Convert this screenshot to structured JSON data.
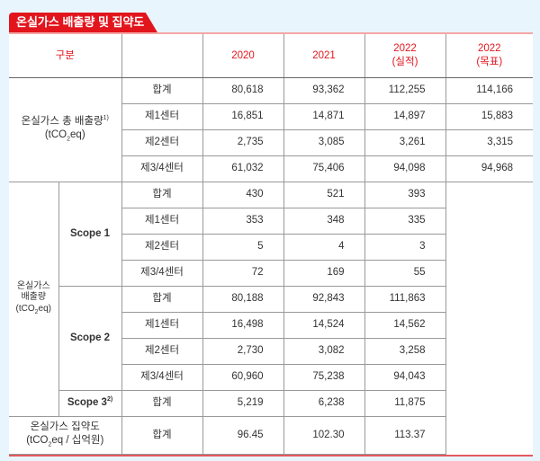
{
  "title": "온실가스 배출량 및 집약도",
  "headers": {
    "category": "구분",
    "y2020": "2020",
    "y2021": "2021",
    "y2022": "2022",
    "y2022_note": "(실적)",
    "y2022g": "2022",
    "y2022g_note": "(목표)"
  },
  "total": {
    "label": "온실가스 총 배출량",
    "sup": "1)",
    "unit_pre": "(tCO",
    "unit_sub": "2",
    "unit_post": "eq)",
    "rows": [
      {
        "sub": "합계",
        "v2020": "80,618",
        "v2021": "93,362",
        "v2022": "112,255",
        "goal": "114,166"
      },
      {
        "sub": "제1센터",
        "v2020": "16,851",
        "v2021": "14,871",
        "v2022": "14,897",
        "goal": "15,883"
      },
      {
        "sub": "제2센터",
        "v2020": "2,735",
        "v2021": "3,085",
        "v2022": "3,261",
        "goal": "3,315"
      },
      {
        "sub": "제3/4센터",
        "v2020": "61,032",
        "v2021": "75,406",
        "v2022": "94,098",
        "goal": "94,968"
      }
    ]
  },
  "emissions": {
    "label1": "온실가스",
    "label2": "배출량",
    "unit_pre": "(tCO",
    "unit_sub": "2",
    "unit_post": "eq)",
    "scope1": {
      "label": "Scope 1",
      "rows": [
        {
          "sub": "합계",
          "v2020": "430",
          "v2021": "521",
          "v2022": "393"
        },
        {
          "sub": "제1센터",
          "v2020": "353",
          "v2021": "348",
          "v2022": "335"
        },
        {
          "sub": "제2센터",
          "v2020": "5",
          "v2021": "4",
          "v2022": "3"
        },
        {
          "sub": "제3/4센터",
          "v2020": "72",
          "v2021": "169",
          "v2022": "55"
        }
      ]
    },
    "scope2": {
      "label": "Scope 2",
      "rows": [
        {
          "sub": "합계",
          "v2020": "80,188",
          "v2021": "92,843",
          "v2022": "111,863"
        },
        {
          "sub": "제1센터",
          "v2020": "16,498",
          "v2021": "14,524",
          "v2022": "14,562"
        },
        {
          "sub": "제2센터",
          "v2020": "2,730",
          "v2021": "3,082",
          "v2022": "3,258"
        },
        {
          "sub": "제3/4센터",
          "v2020": "60,960",
          "v2021": "75,238",
          "v2022": "94,043"
        }
      ]
    },
    "scope3": {
      "label": "Scope 3",
      "sup": "2)",
      "sub": "합계",
      "v2020": "5,219",
      "v2021": "6,238",
      "v2022": "11,875"
    }
  },
  "intensity": {
    "label": "온실가스 집약도",
    "unit_pre": "(tCO",
    "unit_sub": "2",
    "unit_post": "eq / 십억원)",
    "sub": "합계",
    "v2020": "96.45",
    "v2021": "102.30",
    "v2022": "113.37"
  }
}
